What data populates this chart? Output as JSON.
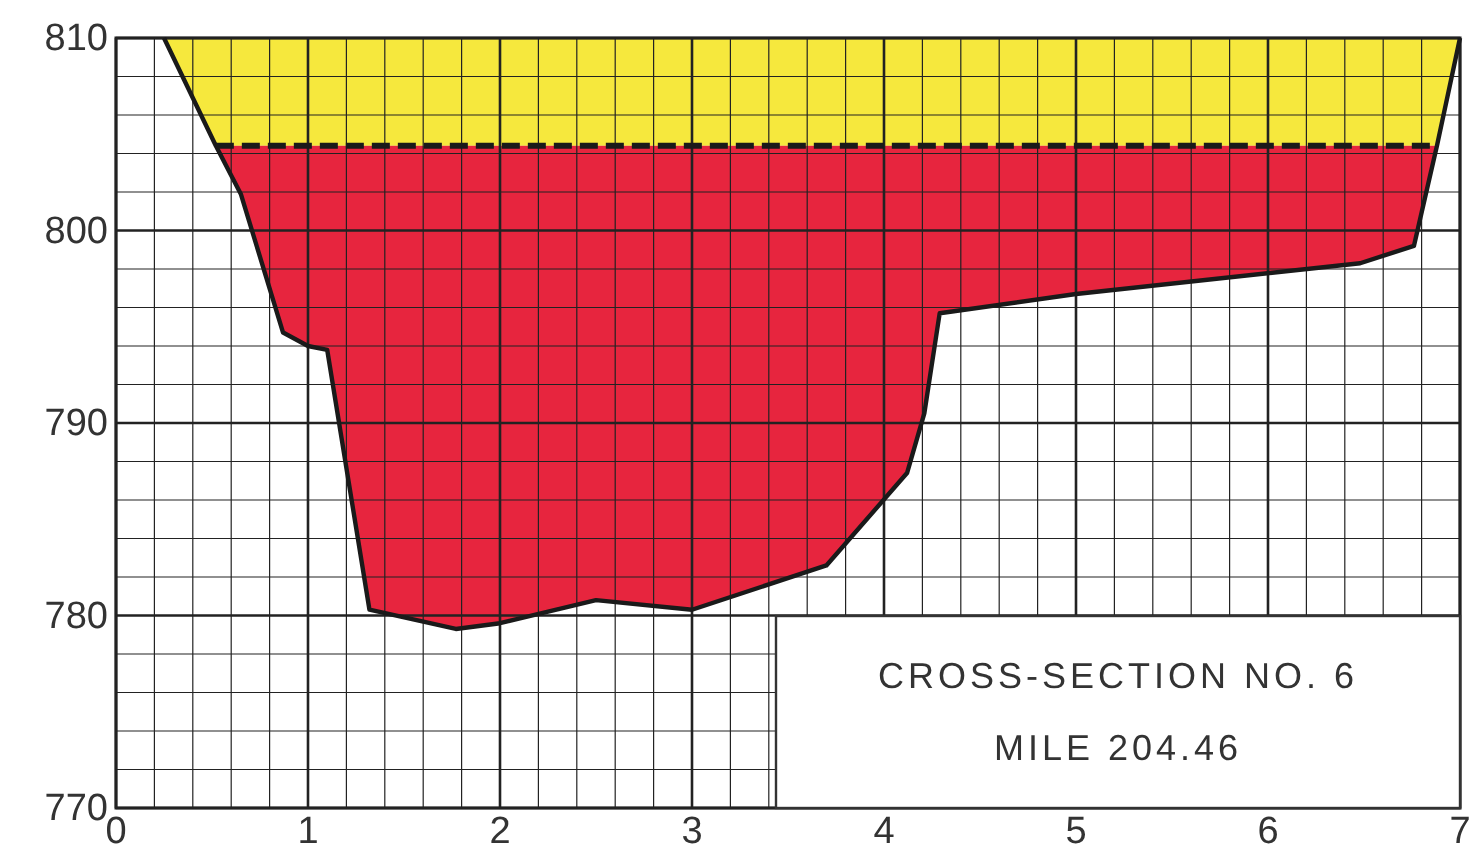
{
  "chart_data": {
    "type": "line",
    "xlim": [
      0,
      7
    ],
    "ylim": [
      770,
      810
    ],
    "xticks": [
      0,
      {
        "value": 0.2,
        "label": null
      },
      {
        "value": 0.4,
        "label": null
      },
      {
        "value": 0.6,
        "label": null
      },
      {
        "value": 0.8,
        "label": null
      },
      1,
      {
        "value": 1.2,
        "label": null
      },
      {
        "value": 1.4,
        "label": null
      },
      {
        "value": 1.6,
        "label": null
      },
      {
        "value": 1.8,
        "label": null
      },
      2,
      {
        "value": 2.2,
        "label": null
      },
      {
        "value": 2.4,
        "label": null
      },
      {
        "value": 2.6,
        "label": null
      },
      {
        "value": 2.8,
        "label": null
      },
      3,
      {
        "value": 3.2,
        "label": null
      },
      {
        "value": 3.4,
        "label": null
      },
      {
        "value": 3.6,
        "label": null
      },
      {
        "value": 3.8,
        "label": null
      },
      4,
      {
        "value": 4.2,
        "label": null
      },
      {
        "value": 4.4,
        "label": null
      },
      {
        "value": 4.6,
        "label": null
      },
      {
        "value": 4.8,
        "label": null
      },
      5,
      {
        "value": 5.2,
        "label": null
      },
      {
        "value": 5.4,
        "label": null
      },
      {
        "value": 5.6,
        "label": null
      },
      {
        "value": 5.8,
        "label": null
      },
      6,
      {
        "value": 6.2,
        "label": null
      },
      {
        "value": 6.4,
        "label": null
      },
      {
        "value": 6.6,
        "label": null
      },
      {
        "value": 6.8,
        "label": null
      },
      7
    ],
    "yticks": [
      770,
      {
        "value": 772,
        "label": null
      },
      {
        "value": 774,
        "label": null
      },
      {
        "value": 776,
        "label": null
      },
      {
        "value": 778,
        "label": null
      },
      780,
      {
        "value": 782,
        "label": null
      },
      {
        "value": 784,
        "label": null
      },
      {
        "value": 786,
        "label": null
      },
      {
        "value": 788,
        "label": null
      },
      790,
      {
        "value": 792,
        "label": null
      },
      {
        "value": 794,
        "label": null
      },
      {
        "value": 796,
        "label": null
      },
      {
        "value": 798,
        "label": null
      },
      800,
      {
        "value": 802,
        "label": null
      },
      {
        "value": 804,
        "label": null
      },
      {
        "value": 806,
        "label": null
      },
      {
        "value": 808,
        "label": null
      },
      810
    ],
    "grid": true,
    "series": [
      {
        "type": "line",
        "color": "#1a1a1a",
        "line_style": "solid",
        "x": [
          0.25,
          0.52,
          0.65,
          0.87,
          1.0,
          1.1,
          1.32,
          1.77,
          2.0,
          2.5,
          3.0,
          3.7,
          4.12,
          4.21,
          4.29,
          5.0,
          6.48,
          6.76,
          6.88,
          7.0
        ],
        "values": [
          810,
          804.4,
          801.9,
          794.7,
          794.0,
          793.8,
          780.3,
          779.3,
          779.6,
          780.8,
          780.3,
          782.6,
          787.4,
          790.5,
          795.7,
          796.7,
          798.3,
          799.2,
          804.4,
          810
        ]
      },
      {
        "type": "line",
        "color": "#1a1a1a",
        "line_style": "dashed",
        "x": [
          0.52,
          6.88
        ],
        "values": [
          804.4,
          804.4
        ]
      }
    ],
    "bands": [
      {
        "axis": "y",
        "from": 804.4,
        "to": 810,
        "color": "#f5e62c"
      },
      {
        "axis": "y",
        "from": 770,
        "to": 804.4,
        "color": "#e5122e"
      }
    ],
    "annotations": [
      "CROSS-SECTION NO. 6",
      "MILE 204.46"
    ]
  }
}
